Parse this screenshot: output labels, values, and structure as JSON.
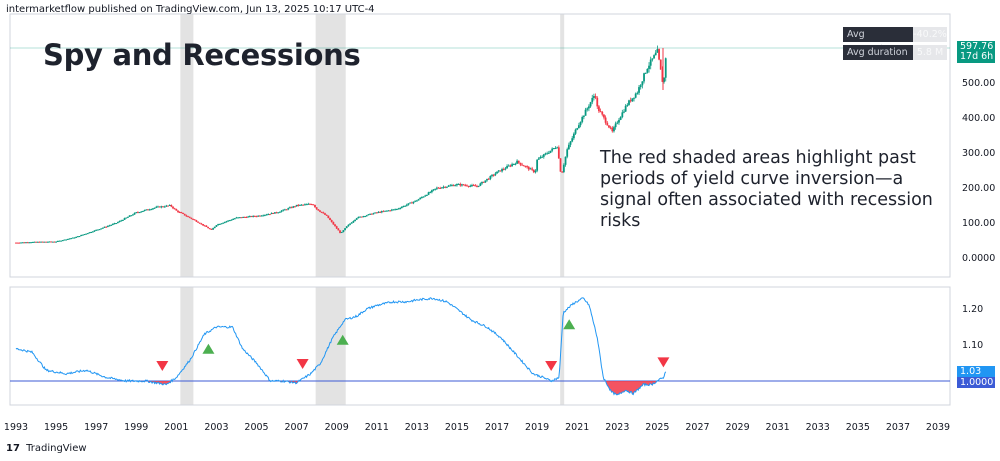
{
  "header": {
    "publisher": "intermarketflow published on TradingView.com, Jun 13, 2025 10:17 UTC-4"
  },
  "footer": {
    "logo_glyph": "17",
    "brand": "TradingView"
  },
  "title": "Spy and Recessions",
  "annotation": "The red shaded areas highlight past periods of yield curve inversion—a signal often associated with recession risks",
  "stats": [
    {
      "label": "Avg correction",
      "value": "-40.2%"
    },
    {
      "label": "Avg duration",
      "value": "5.8 M"
    }
  ],
  "price_label": {
    "value": "597.76",
    "countdown": "17d 6h"
  },
  "indicator_labels": {
    "current": "1.03",
    "baseline": "1.0000"
  },
  "colors": {
    "accent": "#089981",
    "down": "#f23645",
    "up": "#089981",
    "line": "#2196f3",
    "baseline_line": "#3c5bd6",
    "recession": "#d9d9d9",
    "triangle_up": "#4caf50"
  },
  "chart_data": [
    {
      "type": "candlestick",
      "title": "Spy and Recessions",
      "x_ticks": [
        "1993",
        "1995",
        "1997",
        "1999",
        "2001",
        "2003",
        "2005",
        "2007",
        "2009",
        "2011",
        "2013",
        "2015",
        "2017",
        "2019",
        "2021",
        "2023",
        "2025",
        "2027",
        "2029",
        "2031",
        "2033",
        "2035",
        "2037",
        "2039"
      ],
      "y_ticks": [
        "500.00",
        "400.00",
        "300.00",
        "200.00",
        "100.00",
        "0.0000"
      ],
      "ylim": [
        -20,
        640
      ],
      "recession_shading": [
        [
          2001.2,
          2001.85
        ],
        [
          2007.95,
          2009.45
        ],
        [
          2020.15,
          2020.35
        ]
      ],
      "series": [
        {
          "x": [
            1993,
            1994,
            1995,
            1996,
            1997,
            1998,
            1999,
            2000,
            2000.7,
            2001,
            2001.5,
            2002,
            2002.75,
            2003,
            2004,
            2005,
            2006,
            2007,
            2007.8,
            2008,
            2008.5,
            2009.2,
            2009.5,
            2010,
            2011,
            2012,
            2013,
            2014,
            2015,
            2016,
            2017,
            2018,
            2018.9,
            2019,
            2020,
            2020.2,
            2020.5,
            2021,
            2021.9,
            2022,
            2022.75,
            2023,
            2023.5,
            2024,
            2024.5,
            2025,
            2025.3,
            2025.45
          ],
          "values": [
            44,
            46,
            47,
            60,
            80,
            100,
            130,
            145,
            150,
            135,
            120,
            105,
            80,
            95,
            115,
            120,
            130,
            150,
            155,
            140,
            120,
            70,
            90,
            115,
            130,
            140,
            165,
            200,
            210,
            205,
            245,
            275,
            245,
            280,
            320,
            235,
            310,
            375,
            470,
            430,
            360,
            390,
            440,
            475,
            545,
            590,
            490,
            598
          ]
        }
      ]
    },
    {
      "type": "line",
      "y_ticks": [
        "1.20",
        "1.10"
      ],
      "ylim": [
        0.96,
        1.24
      ],
      "baseline": 1.0,
      "series": [
        {
          "x": [
            1993,
            1993.8,
            1994.5,
            1995.5,
            1996.5,
            1997.5,
            1998.5,
            1999.5,
            2000,
            2000.5,
            2001,
            2001.7,
            2002.4,
            2003,
            2003.8,
            2004.3,
            2005,
            2005.7,
            2006.3,
            2007,
            2007.7,
            2008.2,
            2008.8,
            2009.4,
            2010,
            2010.5,
            2011,
            2011.8,
            2012.5,
            2013,
            2013.8,
            2014.5,
            2015,
            2015.7,
            2016.5,
            2017.2,
            2018,
            2018.8,
            2019.3,
            2019.7,
            2020.1,
            2020.3,
            2020.8,
            2021.3,
            2021.6,
            2022,
            2022.3,
            2022.7,
            2023,
            2023.4,
            2023.8,
            2024.3,
            2024.7,
            2025,
            2025.3,
            2025.45
          ],
          "values": [
            1.09,
            1.08,
            1.03,
            1.02,
            1.03,
            1.01,
            1.0,
            1.0,
            0.995,
            0.99,
            1.01,
            1.06,
            1.13,
            1.15,
            1.15,
            1.09,
            1.05,
            1.0,
            1.0,
            0.995,
            1.02,
            1.05,
            1.12,
            1.17,
            1.18,
            1.2,
            1.21,
            1.22,
            1.22,
            1.225,
            1.23,
            1.22,
            1.2,
            1.17,
            1.15,
            1.12,
            1.07,
            1.02,
            1.01,
            1.0,
            1.01,
            1.19,
            1.215,
            1.23,
            1.21,
            1.12,
            1.01,
            0.97,
            0.96,
            0.975,
            0.965,
            0.99,
            0.99,
            1.0,
            1.01,
            1.03
          ]
        }
      ],
      "markers": [
        {
          "x": 2000.3,
          "kind": "down"
        },
        {
          "x": 2002.6,
          "kind": "up"
        },
        {
          "x": 2007.3,
          "kind": "down"
        },
        {
          "x": 2009.3,
          "kind": "up"
        },
        {
          "x": 2019.7,
          "kind": "down"
        },
        {
          "x": 2020.6,
          "kind": "up"
        },
        {
          "x": 2025.3,
          "kind": "down"
        }
      ]
    }
  ]
}
